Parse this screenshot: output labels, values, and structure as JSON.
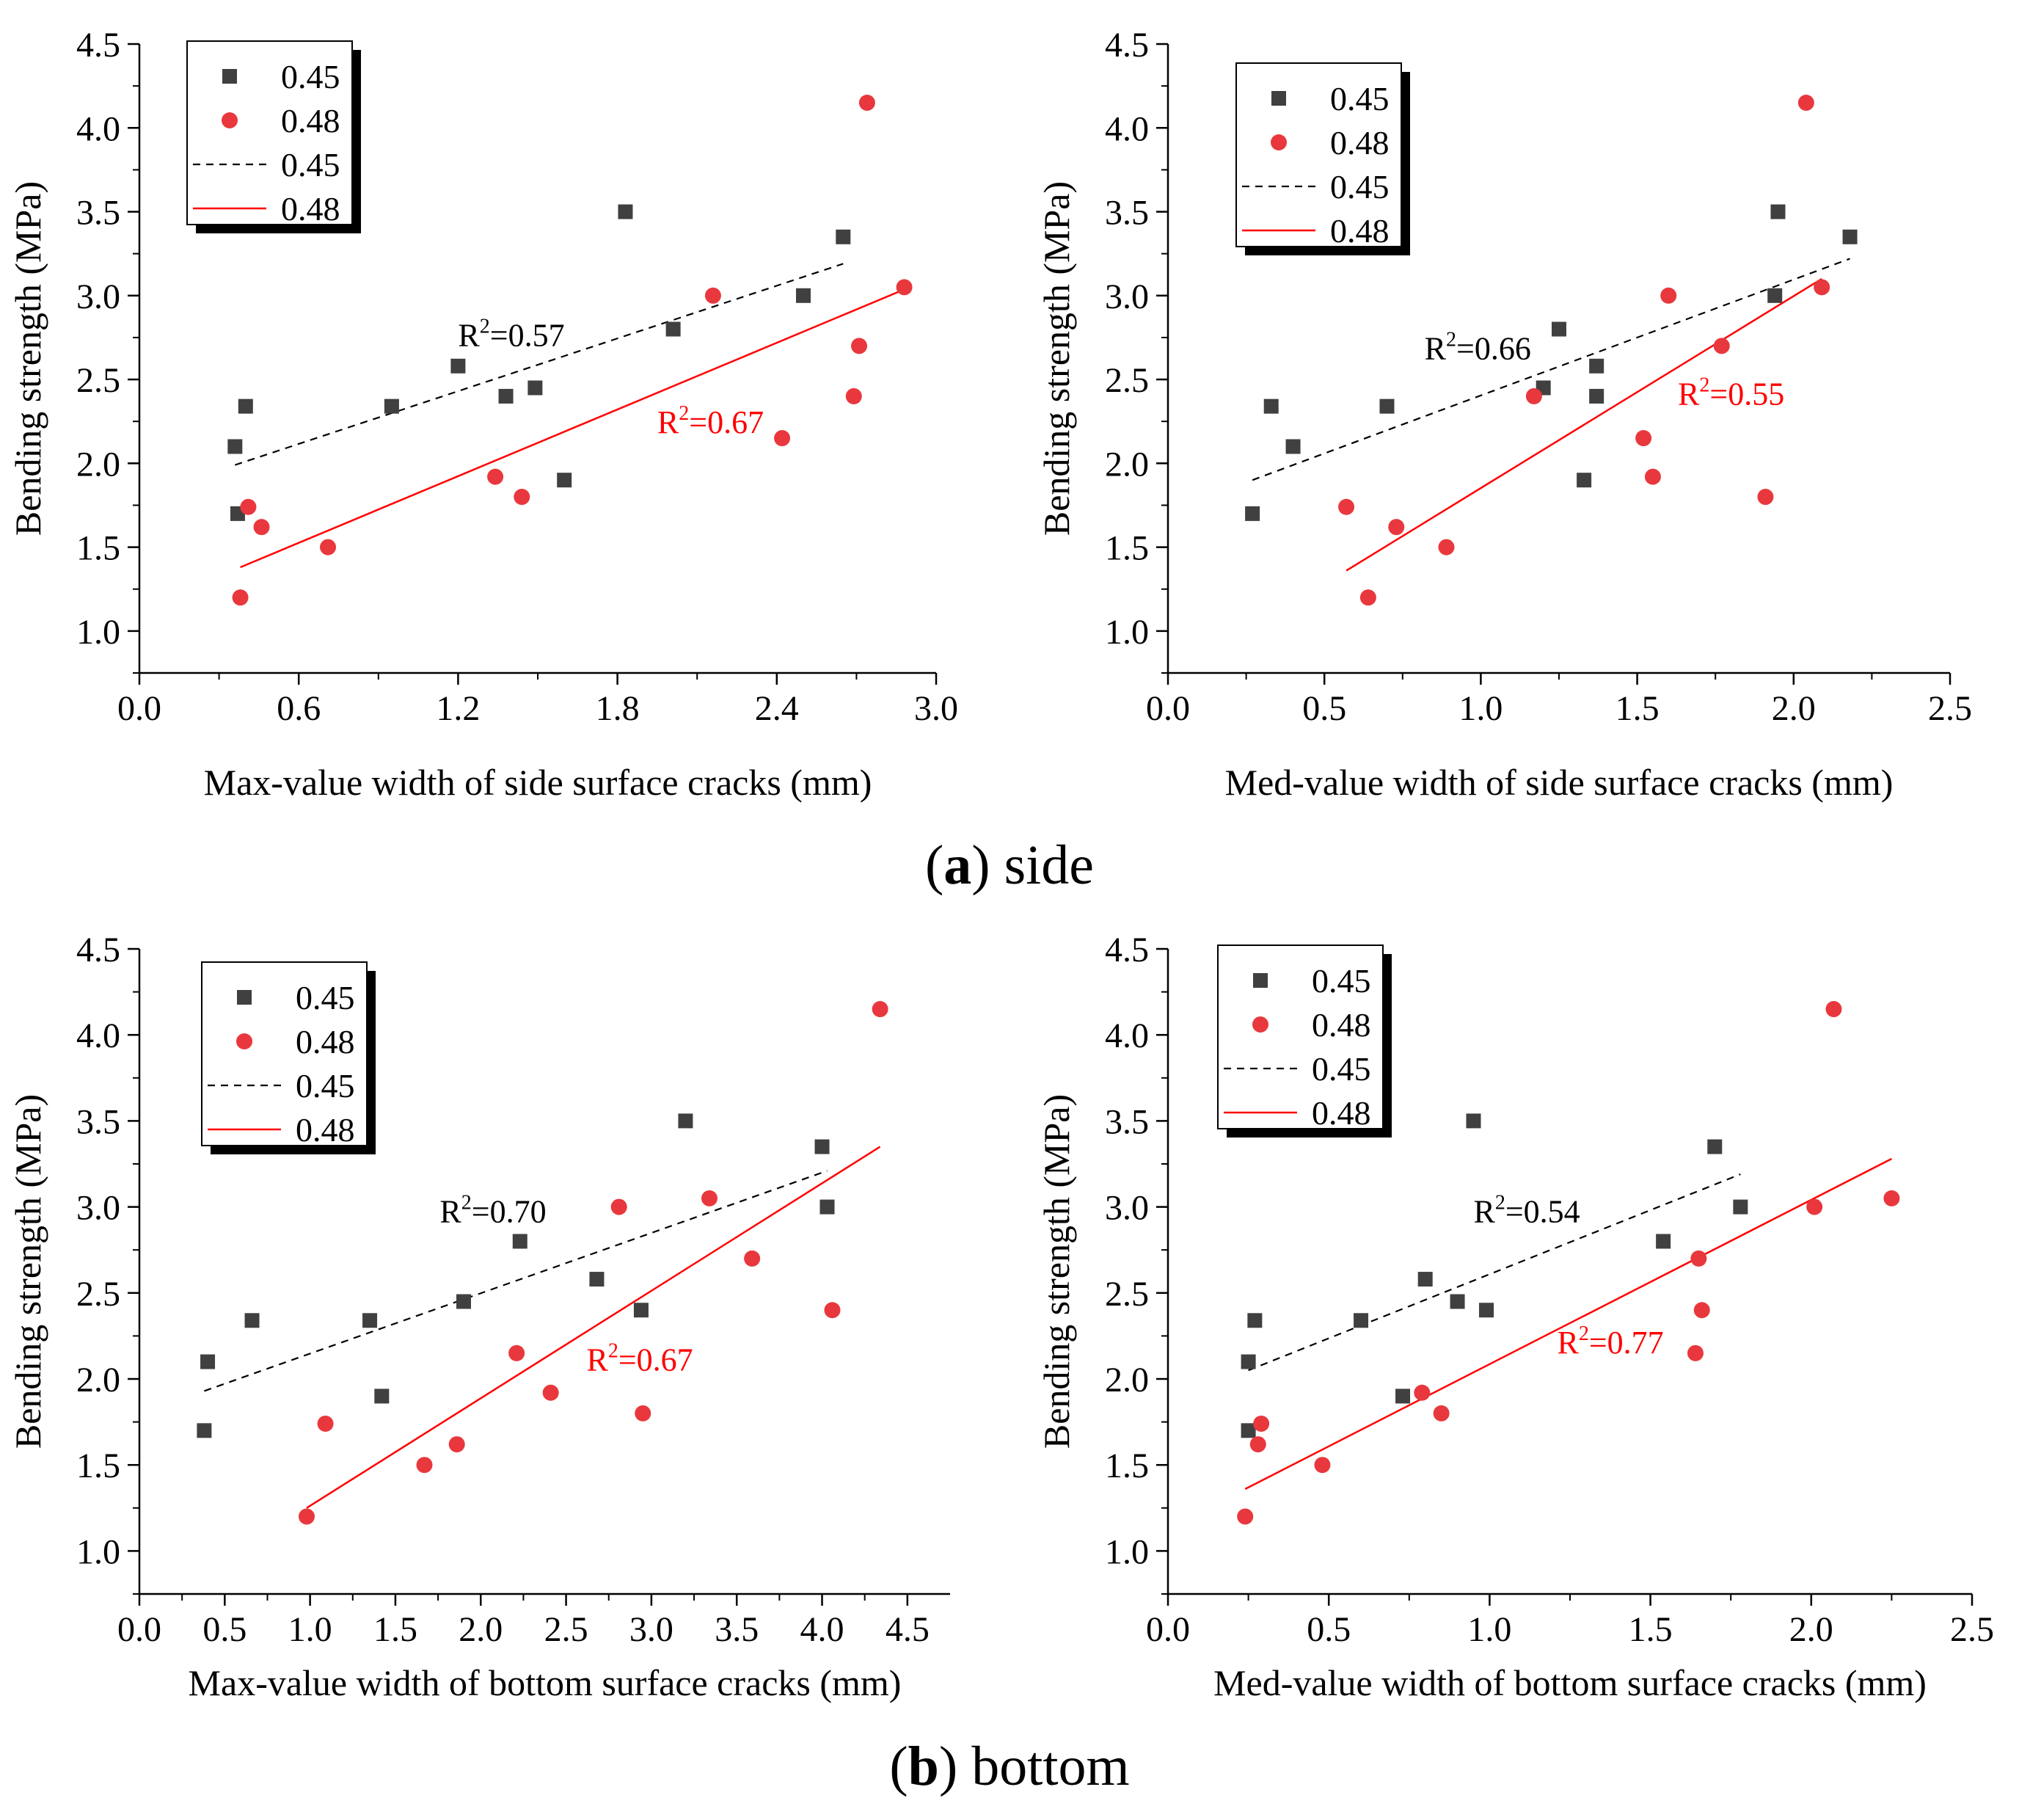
{
  "figure": {
    "caption_a": {
      "letter": "a",
      "open": "(",
      "close": ")",
      "rest": " side"
    },
    "caption_b": {
      "letter": "b",
      "open": "(",
      "close": ")",
      "rest": " bottom"
    }
  },
  "colors": {
    "series045": "#404040",
    "series048": "#e8383d",
    "fit048": "#ff0000",
    "axis": "#000000",
    "text": "#000000"
  },
  "chart_data": [
    {
      "id": "side-max",
      "type": "scatter",
      "xlabel": "Max-value width of side surface cracks (mm)",
      "ylabel": "Bending strength (MPa)",
      "xlim": [
        0,
        3.0
      ],
      "ylim": [
        0.75,
        4.5
      ],
      "xticks": [
        0,
        0.6,
        1.2,
        1.8,
        2.4,
        3.0
      ],
      "xtick_labels": [
        "0.0",
        "0.6",
        "1.2",
        "1.8",
        "2.4",
        "3.0"
      ],
      "yticks": [
        1.0,
        1.5,
        2.0,
        2.5,
        3.0,
        3.5,
        4.0,
        4.5
      ],
      "ytick_labels": [
        "1.0",
        "1.5",
        "2.0",
        "2.5",
        "3.0",
        "3.5",
        "4.0",
        "4.5"
      ],
      "legend": [
        "0.45",
        "0.48",
        "0.45",
        "0.48"
      ],
      "legend_position": "top-left",
      "series": [
        {
          "name": "0.45",
          "marker": "square",
          "x": [
            0.36,
            0.37,
            0.4,
            0.95,
            1.2,
            1.38,
            1.49,
            1.6,
            1.83,
            2.01,
            2.5,
            2.65
          ],
          "y": [
            2.1,
            1.7,
            2.34,
            2.34,
            2.58,
            2.4,
            2.45,
            1.9,
            3.5,
            2.8,
            3.0,
            3.35
          ]
        },
        {
          "name": "0.48",
          "marker": "circle",
          "x": [
            0.38,
            0.41,
            0.46,
            0.71,
            1.34,
            1.44,
            2.16,
            2.42,
            2.69,
            2.71,
            2.74,
            2.88
          ],
          "y": [
            1.2,
            1.74,
            1.62,
            1.5,
            1.92,
            1.8,
            3.0,
            2.15,
            2.4,
            2.7,
            4.15,
            3.05
          ]
        }
      ],
      "fits": [
        {
          "name": "0.45",
          "style": "dashed",
          "x": [
            0.36,
            2.65
          ],
          "y": [
            1.99,
            3.19
          ]
        },
        {
          "name": "0.48",
          "style": "solid",
          "x": [
            0.38,
            2.9
          ],
          "y": [
            1.38,
            3.05
          ]
        }
      ],
      "annotations": [
        {
          "text": "R",
          "sup": "2",
          "value": "=0.57",
          "series": "0.45",
          "x": 1.2,
          "y": 2.7
        },
        {
          "text": "R",
          "sup": "2",
          "value": "=0.67",
          "series": "0.48",
          "x": 1.95,
          "y": 2.18
        }
      ]
    },
    {
      "id": "side-med",
      "type": "scatter",
      "xlabel": "Med-value width of side surface cracks (mm)",
      "ylabel": "Bending strength (MPa)",
      "xlim": [
        0,
        2.5
      ],
      "ylim": [
        0.75,
        4.5
      ],
      "xticks": [
        0,
        0.5,
        1.0,
        1.5,
        2.0,
        2.5
      ],
      "xtick_labels": [
        "0.0",
        "0.5",
        "1.0",
        "1.5",
        "2.0",
        "2.5"
      ],
      "yticks": [
        1.0,
        1.5,
        2.0,
        2.5,
        3.0,
        3.5,
        4.0,
        4.5
      ],
      "ytick_labels": [
        "1.0",
        "1.5",
        "2.0",
        "2.5",
        "3.0",
        "3.5",
        "4.0",
        "4.5"
      ],
      "legend": [
        "0.45",
        "0.48",
        "0.45",
        "0.48"
      ],
      "legend_position": "top-left",
      "series": [
        {
          "name": "0.45",
          "marker": "square",
          "x": [
            0.27,
            0.33,
            0.4,
            0.7,
            1.2,
            1.25,
            1.33,
            1.37,
            1.37,
            1.94,
            1.95,
            2.18
          ],
          "y": [
            1.7,
            2.34,
            2.1,
            2.34,
            2.45,
            2.8,
            1.9,
            2.58,
            2.4,
            3.0,
            3.5,
            3.35
          ]
        },
        {
          "name": "0.48",
          "marker": "circle",
          "x": [
            0.57,
            0.64,
            0.73,
            0.89,
            1.17,
            1.52,
            1.55,
            1.6,
            1.77,
            1.91,
            2.04,
            2.09
          ],
          "y": [
            1.74,
            1.2,
            1.62,
            1.5,
            2.4,
            2.15,
            1.92,
            3.0,
            2.7,
            1.8,
            4.15,
            3.05
          ]
        }
      ],
      "fits": [
        {
          "name": "0.45",
          "style": "dashed",
          "x": [
            0.27,
            2.18
          ],
          "y": [
            1.9,
            3.22
          ]
        },
        {
          "name": "0.48",
          "style": "solid",
          "x": [
            0.57,
            2.09
          ],
          "y": [
            1.36,
            3.1
          ]
        }
      ],
      "annotations": [
        {
          "text": "R",
          "sup": "2",
          "value": "=0.66",
          "series": "0.45",
          "x": 0.82,
          "y": 2.62
        },
        {
          "text": "R",
          "sup": "2",
          "value": "=0.55",
          "series": "0.48",
          "x": 1.63,
          "y": 2.35
        }
      ]
    },
    {
      "id": "bottom-max",
      "type": "scatter",
      "xlabel": "Max-value width  of bottom surface cracks (mm)",
      "ylabel": "Bending strength (MPa)",
      "xlim": [
        0,
        4.75
      ],
      "ylim": [
        0.75,
        4.5
      ],
      "xticks": [
        0,
        0.5,
        1.0,
        1.5,
        2.0,
        2.5,
        3.0,
        3.5,
        4.0,
        4.5
      ],
      "xtick_labels": [
        "0.0",
        "0.5",
        "1.0",
        "1.5",
        "2.0",
        "2.5",
        "3.0",
        "3.5",
        "4.0",
        "4.5"
      ],
      "yticks": [
        1.0,
        1.5,
        2.0,
        2.5,
        3.0,
        3.5,
        4.0,
        4.5
      ],
      "ytick_labels": [
        "1.0",
        "1.5",
        "2.0",
        "2.5",
        "3.0",
        "3.5",
        "4.0",
        "4.5"
      ],
      "legend": [
        "0.45",
        "0.48",
        "0.45",
        "0.48"
      ],
      "legend_position": "top-left",
      "series": [
        {
          "name": "0.45",
          "marker": "square",
          "x": [
            0.38,
            0.4,
            0.66,
            1.35,
            1.42,
            1.9,
            2.23,
            2.68,
            2.94,
            3.2,
            4.0,
            4.03
          ],
          "y": [
            1.7,
            2.1,
            2.34,
            2.34,
            1.9,
            2.45,
            2.8,
            2.58,
            2.4,
            3.5,
            3.35,
            3.0
          ]
        },
        {
          "name": "0.48",
          "marker": "circle",
          "x": [
            0.98,
            1.09,
            1.67,
            1.86,
            2.21,
            2.41,
            2.81,
            2.95,
            3.34,
            3.59,
            4.06,
            4.34
          ],
          "y": [
            1.2,
            1.74,
            1.5,
            1.62,
            2.15,
            1.92,
            3.0,
            1.8,
            3.05,
            2.7,
            2.4,
            4.15
          ]
        }
      ],
      "fits": [
        {
          "name": "0.45",
          "style": "dashed",
          "x": [
            0.38,
            4.03
          ],
          "y": [
            1.93,
            3.21
          ]
        },
        {
          "name": "0.48",
          "style": "solid",
          "x": [
            0.98,
            4.34
          ],
          "y": [
            1.25,
            3.35
          ]
        }
      ],
      "annotations": [
        {
          "text": "R",
          "sup": "2",
          "value": "=0.70",
          "series": "0.45",
          "x": 1.76,
          "y": 2.91
        },
        {
          "text": "R",
          "sup": "2",
          "value": "=0.67",
          "series": "0.48",
          "x": 2.62,
          "y": 2.05
        }
      ]
    },
    {
      "id": "bottom-med",
      "type": "scatter",
      "xlabel": "Med-value width of bottom surface cracks (mm)",
      "ylabel": "Bending strength (MPa)",
      "xlim": [
        0,
        2.5
      ],
      "ylim": [
        0.75,
        4.5
      ],
      "xticks": [
        0,
        0.5,
        1.0,
        1.5,
        2.0,
        2.5
      ],
      "xtick_labels": [
        "0.0",
        "0.5",
        "1.0",
        "1.5",
        "2.0",
        "2.5"
      ],
      "yticks": [
        1.0,
        1.5,
        2.0,
        2.5,
        3.0,
        3.5,
        4.0,
        4.5
      ],
      "ytick_labels": [
        "1.0",
        "1.5",
        "2.0",
        "2.5",
        "3.0",
        "3.5",
        "4.0",
        "4.5"
      ],
      "legend": [
        "0.45",
        "0.48",
        "0.45",
        "0.48"
      ],
      "legend_position": "top-left",
      "series": [
        {
          "name": "0.45",
          "marker": "square",
          "x": [
            0.25,
            0.25,
            0.27,
            0.6,
            0.73,
            0.8,
            0.9,
            0.95,
            0.99,
            1.54,
            1.7,
            1.78
          ],
          "y": [
            1.7,
            2.1,
            2.34,
            2.34,
            1.9,
            2.58,
            2.45,
            3.5,
            2.4,
            2.8,
            3.35,
            3.0
          ]
        },
        {
          "name": "0.48",
          "marker": "circle",
          "x": [
            0.24,
            0.28,
            0.29,
            0.48,
            0.79,
            0.85,
            1.64,
            1.65,
            1.66,
            2.01,
            2.07,
            2.25
          ],
          "y": [
            1.2,
            1.62,
            1.74,
            1.5,
            1.92,
            1.8,
            2.15,
            2.7,
            2.4,
            3.0,
            4.15,
            3.05
          ]
        }
      ],
      "fits": [
        {
          "name": "0.45",
          "style": "dashed",
          "x": [
            0.25,
            1.78
          ],
          "y": [
            2.05,
            3.19
          ]
        },
        {
          "name": "0.48",
          "style": "solid",
          "x": [
            0.24,
            2.25
          ],
          "y": [
            1.36,
            3.28
          ]
        }
      ],
      "annotations": [
        {
          "text": "R",
          "sup": "2",
          "value": "=0.54",
          "series": "0.45",
          "x": 0.95,
          "y": 2.91
        },
        {
          "text": "R",
          "sup": "2",
          "value": "=0.77",
          "series": "0.48",
          "x": 1.21,
          "y": 2.15
        }
      ]
    }
  ]
}
